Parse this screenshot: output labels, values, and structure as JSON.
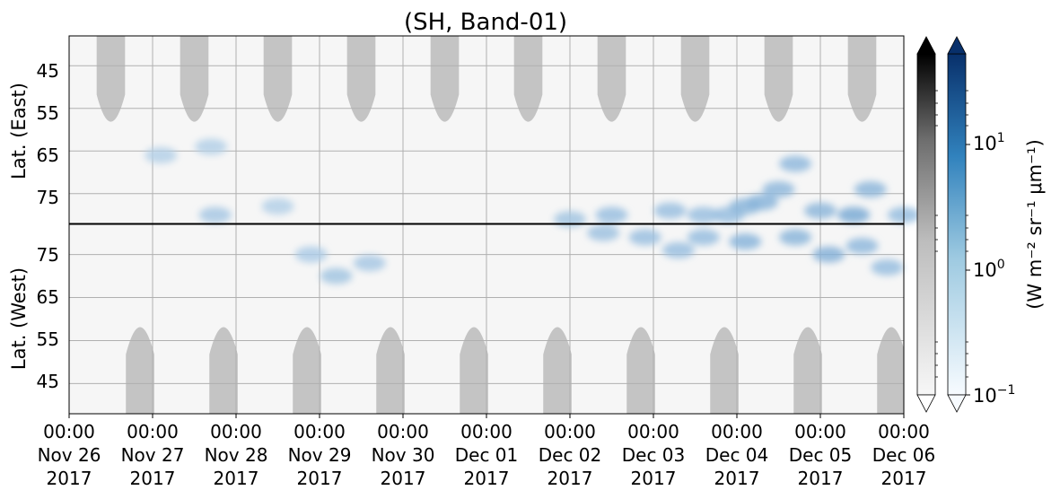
{
  "chart_data": {
    "type": "heatmap",
    "title": "(SH, Band-01)",
    "xlabel": "",
    "x_ticks": [
      {
        "time": "00:00",
        "date": "Nov 26",
        "year": "2017"
      },
      {
        "time": "00:00",
        "date": "Nov 27",
        "year": "2017"
      },
      {
        "time": "00:00",
        "date": "Nov 28",
        "year": "2017"
      },
      {
        "time": "00:00",
        "date": "Nov 29",
        "year": "2017"
      },
      {
        "time": "00:00",
        "date": "Nov 30",
        "year": "2017"
      },
      {
        "time": "00:00",
        "date": "Dec 01",
        "year": "2017"
      },
      {
        "time": "00:00",
        "date": "Dec 02",
        "year": "2017"
      },
      {
        "time": "00:00",
        "date": "Dec 03",
        "year": "2017"
      },
      {
        "time": "00:00",
        "date": "Dec 04",
        "year": "2017"
      },
      {
        "time": "00:00",
        "date": "Dec 05",
        "year": "2017"
      },
      {
        "time": "00:00",
        "date": "Dec 06",
        "year": "2017"
      }
    ],
    "xlim": [
      "2017-11-26 00:00",
      "2017-12-06 00:00"
    ],
    "panels": [
      {
        "ylabel": "Lat. (East)",
        "ylim": [
          38,
          82
        ],
        "y_ticks": [
          45,
          55,
          65,
          75
        ],
        "orientation": "pole-bottom"
      },
      {
        "ylabel": "Lat. (West)",
        "ylim": [
          38,
          82
        ],
        "y_ticks": [
          75,
          65,
          55,
          45
        ],
        "orientation": "pole-top"
      }
    ],
    "grid": true,
    "colorbars": [
      {
        "name": "gray",
        "scale": "log",
        "extend": "both",
        "colors": [
          "#ffffff",
          "#bdbdbd",
          "#6d6d6d",
          "#000000"
        ]
      },
      {
        "name": "blue",
        "scale": "log",
        "extend": "both",
        "colors": [
          "#f7fbff",
          "#9ecae1",
          "#3182bd",
          "#08306b"
        ],
        "ticks": [
          {
            "base": "10",
            "exp": "1",
            "value": 10
          },
          {
            "base": "10",
            "exp": "0",
            "value": 1
          },
          {
            "base": "10",
            "exp": "−1",
            "value": 0.1
          }
        ]
      }
    ],
    "colorbar_label": "(W m⁻² sr⁻¹ μm⁻¹)",
    "vlim": [
      0.1,
      50
    ],
    "blue_blobs": [
      {
        "panel": "east",
        "day": 1.1,
        "lat": 66,
        "value": 0.4
      },
      {
        "panel": "east",
        "day": 1.7,
        "lat": 64,
        "value": 0.4
      },
      {
        "panel": "east",
        "day": 1.75,
        "lat": 80,
        "value": 0.6
      },
      {
        "panel": "east",
        "day": 2.5,
        "lat": 78,
        "value": 0.4
      },
      {
        "panel": "east",
        "day": 6.0,
        "lat": 81,
        "value": 0.7
      },
      {
        "panel": "east",
        "day": 6.5,
        "lat": 80,
        "value": 0.9
      },
      {
        "panel": "east",
        "day": 7.2,
        "lat": 79,
        "value": 0.9
      },
      {
        "panel": "east",
        "day": 7.6,
        "lat": 80,
        "value": 0.9
      },
      {
        "panel": "east",
        "day": 7.9,
        "lat": 80,
        "value": 1.0
      },
      {
        "panel": "east",
        "day": 8.1,
        "lat": 78,
        "value": 1.5
      },
      {
        "panel": "east",
        "day": 8.3,
        "lat": 77,
        "value": 1.6
      },
      {
        "panel": "east",
        "day": 8.5,
        "lat": 74,
        "value": 1.3
      },
      {
        "panel": "east",
        "day": 8.7,
        "lat": 68,
        "value": 1.2
      },
      {
        "panel": "east",
        "day": 9.0,
        "lat": 79,
        "value": 1.4
      },
      {
        "panel": "east",
        "day": 9.4,
        "lat": 80,
        "value": 2.5
      },
      {
        "panel": "east",
        "day": 9.6,
        "lat": 74,
        "value": 1.4
      },
      {
        "panel": "east",
        "day": 10.0,
        "lat": 80,
        "value": 1.0
      },
      {
        "panel": "west",
        "day": 2.9,
        "lat": 75,
        "value": 0.5
      },
      {
        "panel": "west",
        "day": 3.2,
        "lat": 70,
        "value": 0.7
      },
      {
        "panel": "west",
        "day": 3.6,
        "lat": 73,
        "value": 0.6
      },
      {
        "panel": "west",
        "day": 6.4,
        "lat": 80,
        "value": 0.8
      },
      {
        "panel": "west",
        "day": 6.9,
        "lat": 79,
        "value": 0.9
      },
      {
        "panel": "west",
        "day": 7.3,
        "lat": 76,
        "value": 0.9
      },
      {
        "panel": "west",
        "day": 7.6,
        "lat": 79,
        "value": 1.0
      },
      {
        "panel": "west",
        "day": 8.1,
        "lat": 78,
        "value": 1.6
      },
      {
        "panel": "west",
        "day": 8.7,
        "lat": 79,
        "value": 1.5
      },
      {
        "panel": "west",
        "day": 9.1,
        "lat": 75,
        "value": 1.8
      },
      {
        "panel": "west",
        "day": 9.5,
        "lat": 77,
        "value": 1.2
      },
      {
        "panel": "west",
        "day": 9.8,
        "lat": 72,
        "value": 1.0
      }
    ]
  }
}
